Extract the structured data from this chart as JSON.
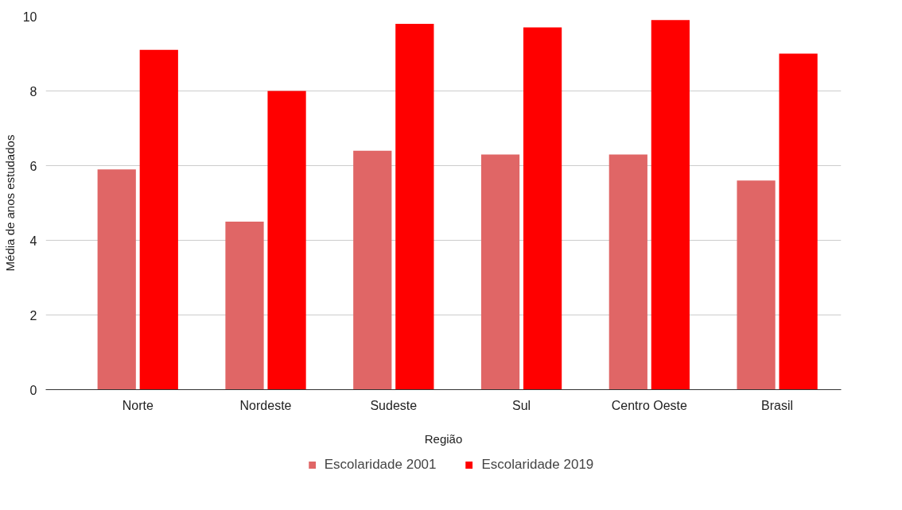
{
  "chart_data": {
    "type": "bar",
    "xlabel": "Região",
    "ylabel": "Média de anos estudados",
    "categories": [
      "Norte",
      "Nordeste",
      "Sudeste",
      "Sul",
      "Centro Oeste",
      "Brasil"
    ],
    "series": [
      {
        "name": "Escolaridade 2001",
        "color": "#e06666",
        "values": [
          5.9,
          4.5,
          6.4,
          6.3,
          6.3,
          5.6
        ]
      },
      {
        "name": "Escolaridade 2019",
        "color": "#ff0000",
        "values": [
          9.1,
          8.0,
          9.8,
          9.7,
          9.9,
          9.0
        ]
      }
    ],
    "ylim": [
      0,
      10
    ],
    "yticks": [
      0,
      2,
      4,
      6,
      8,
      10
    ],
    "grid": "y",
    "legend": "bottom"
  }
}
